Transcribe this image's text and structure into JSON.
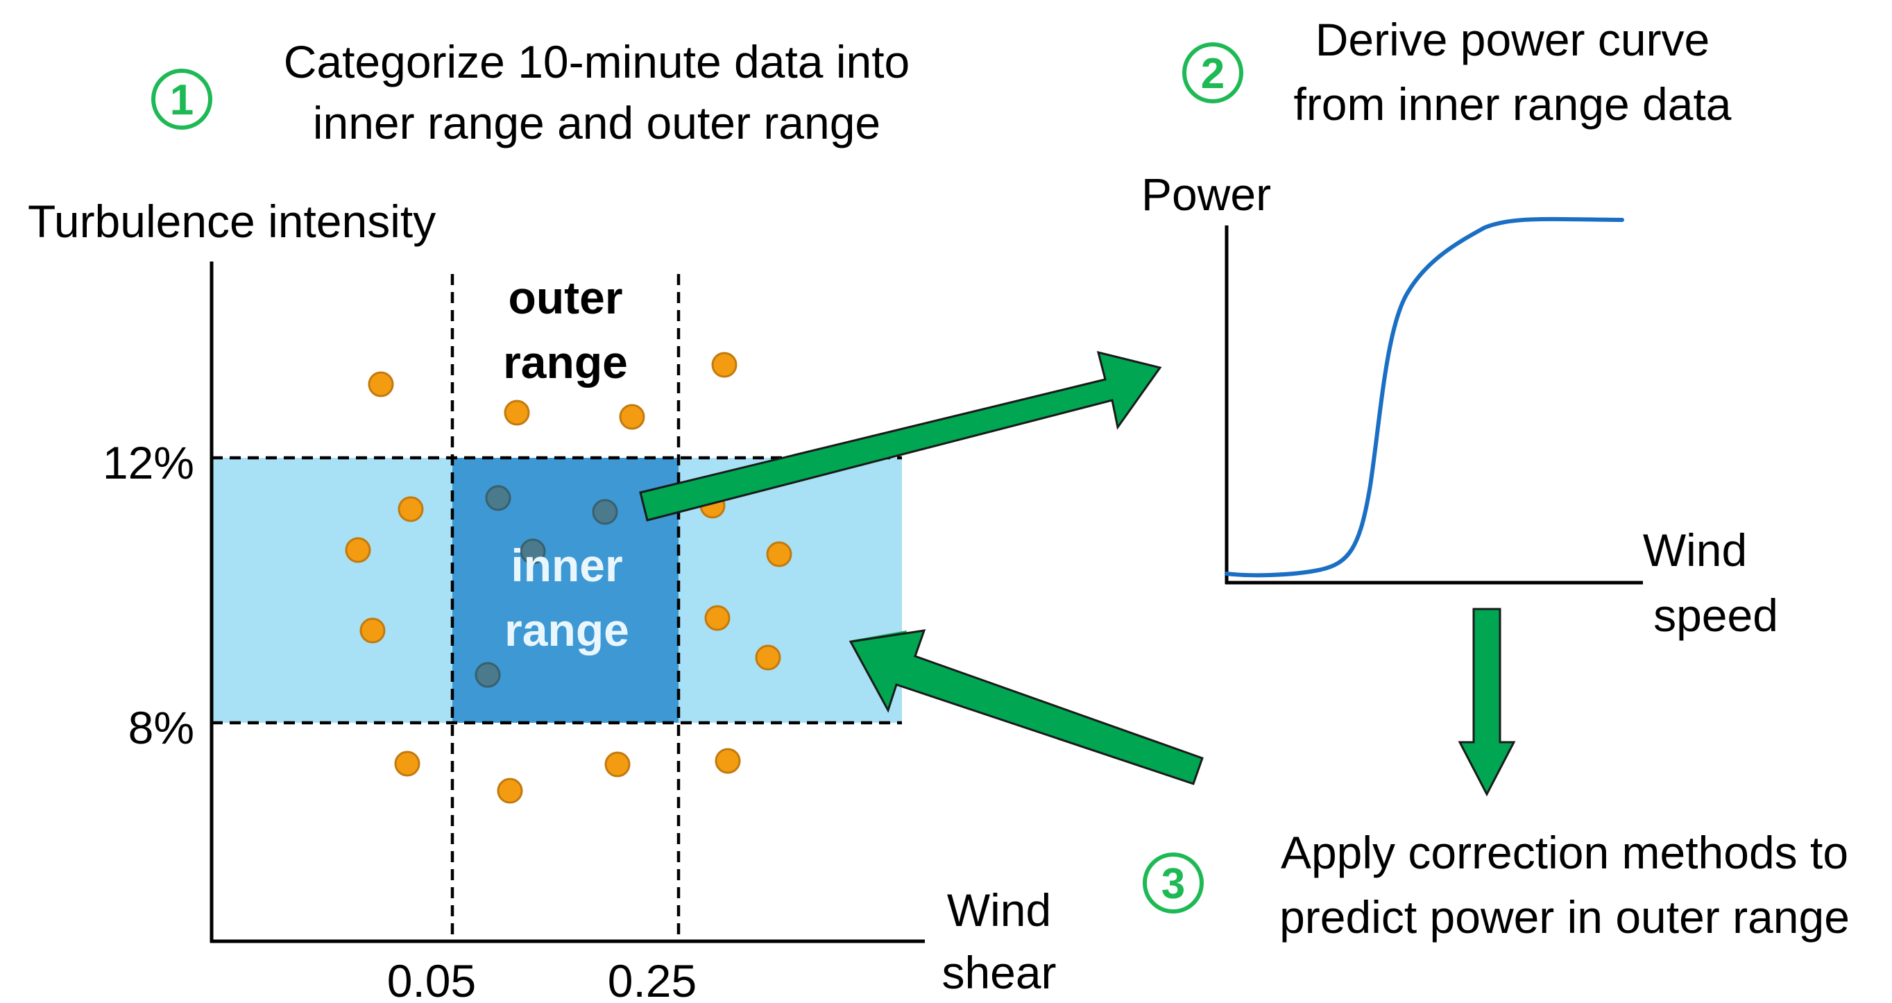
{
  "steps": {
    "step1": {
      "number": "1",
      "line1": "Categorize 10-minute data into",
      "line2": "inner range and outer range"
    },
    "step2": {
      "number": "2",
      "line1": "Derive power curve",
      "line2": "from inner range data"
    },
    "step3": {
      "number": "3",
      "line1": "Apply correction methods to",
      "line2": "predict power in outer range"
    }
  },
  "scatter": {
    "y_axis_label": "Turbulence intensity",
    "x_axis_label_line1": "Wind",
    "x_axis_label_line2": "shear",
    "y_ticks": [
      "12%",
      "8%"
    ],
    "x_ticks": [
      "0.05",
      "0.25"
    ],
    "outer_label_line1": "outer",
    "outer_label_line2": "range",
    "inner_label_line1": "inner",
    "inner_label_line2": "range"
  },
  "power_curve": {
    "y_axis_label": "Power",
    "x_axis_label_line1": "Wind",
    "x_axis_label_line2": "speed"
  },
  "colors": {
    "step_circle": "#1db954",
    "arrow_fill": "#00a651",
    "arrow_stroke": "#1a1a1a",
    "outer_band": "#a8e1f5",
    "inner_box": "#3d98d3",
    "point": "#f39c12",
    "point_stroke": "#c27a0e",
    "point_in_box": "#4a7a8c",
    "curve": "#1a6fc4"
  },
  "icons": [
    "arrow-right-up",
    "arrow-down",
    "arrow-left-up"
  ]
}
